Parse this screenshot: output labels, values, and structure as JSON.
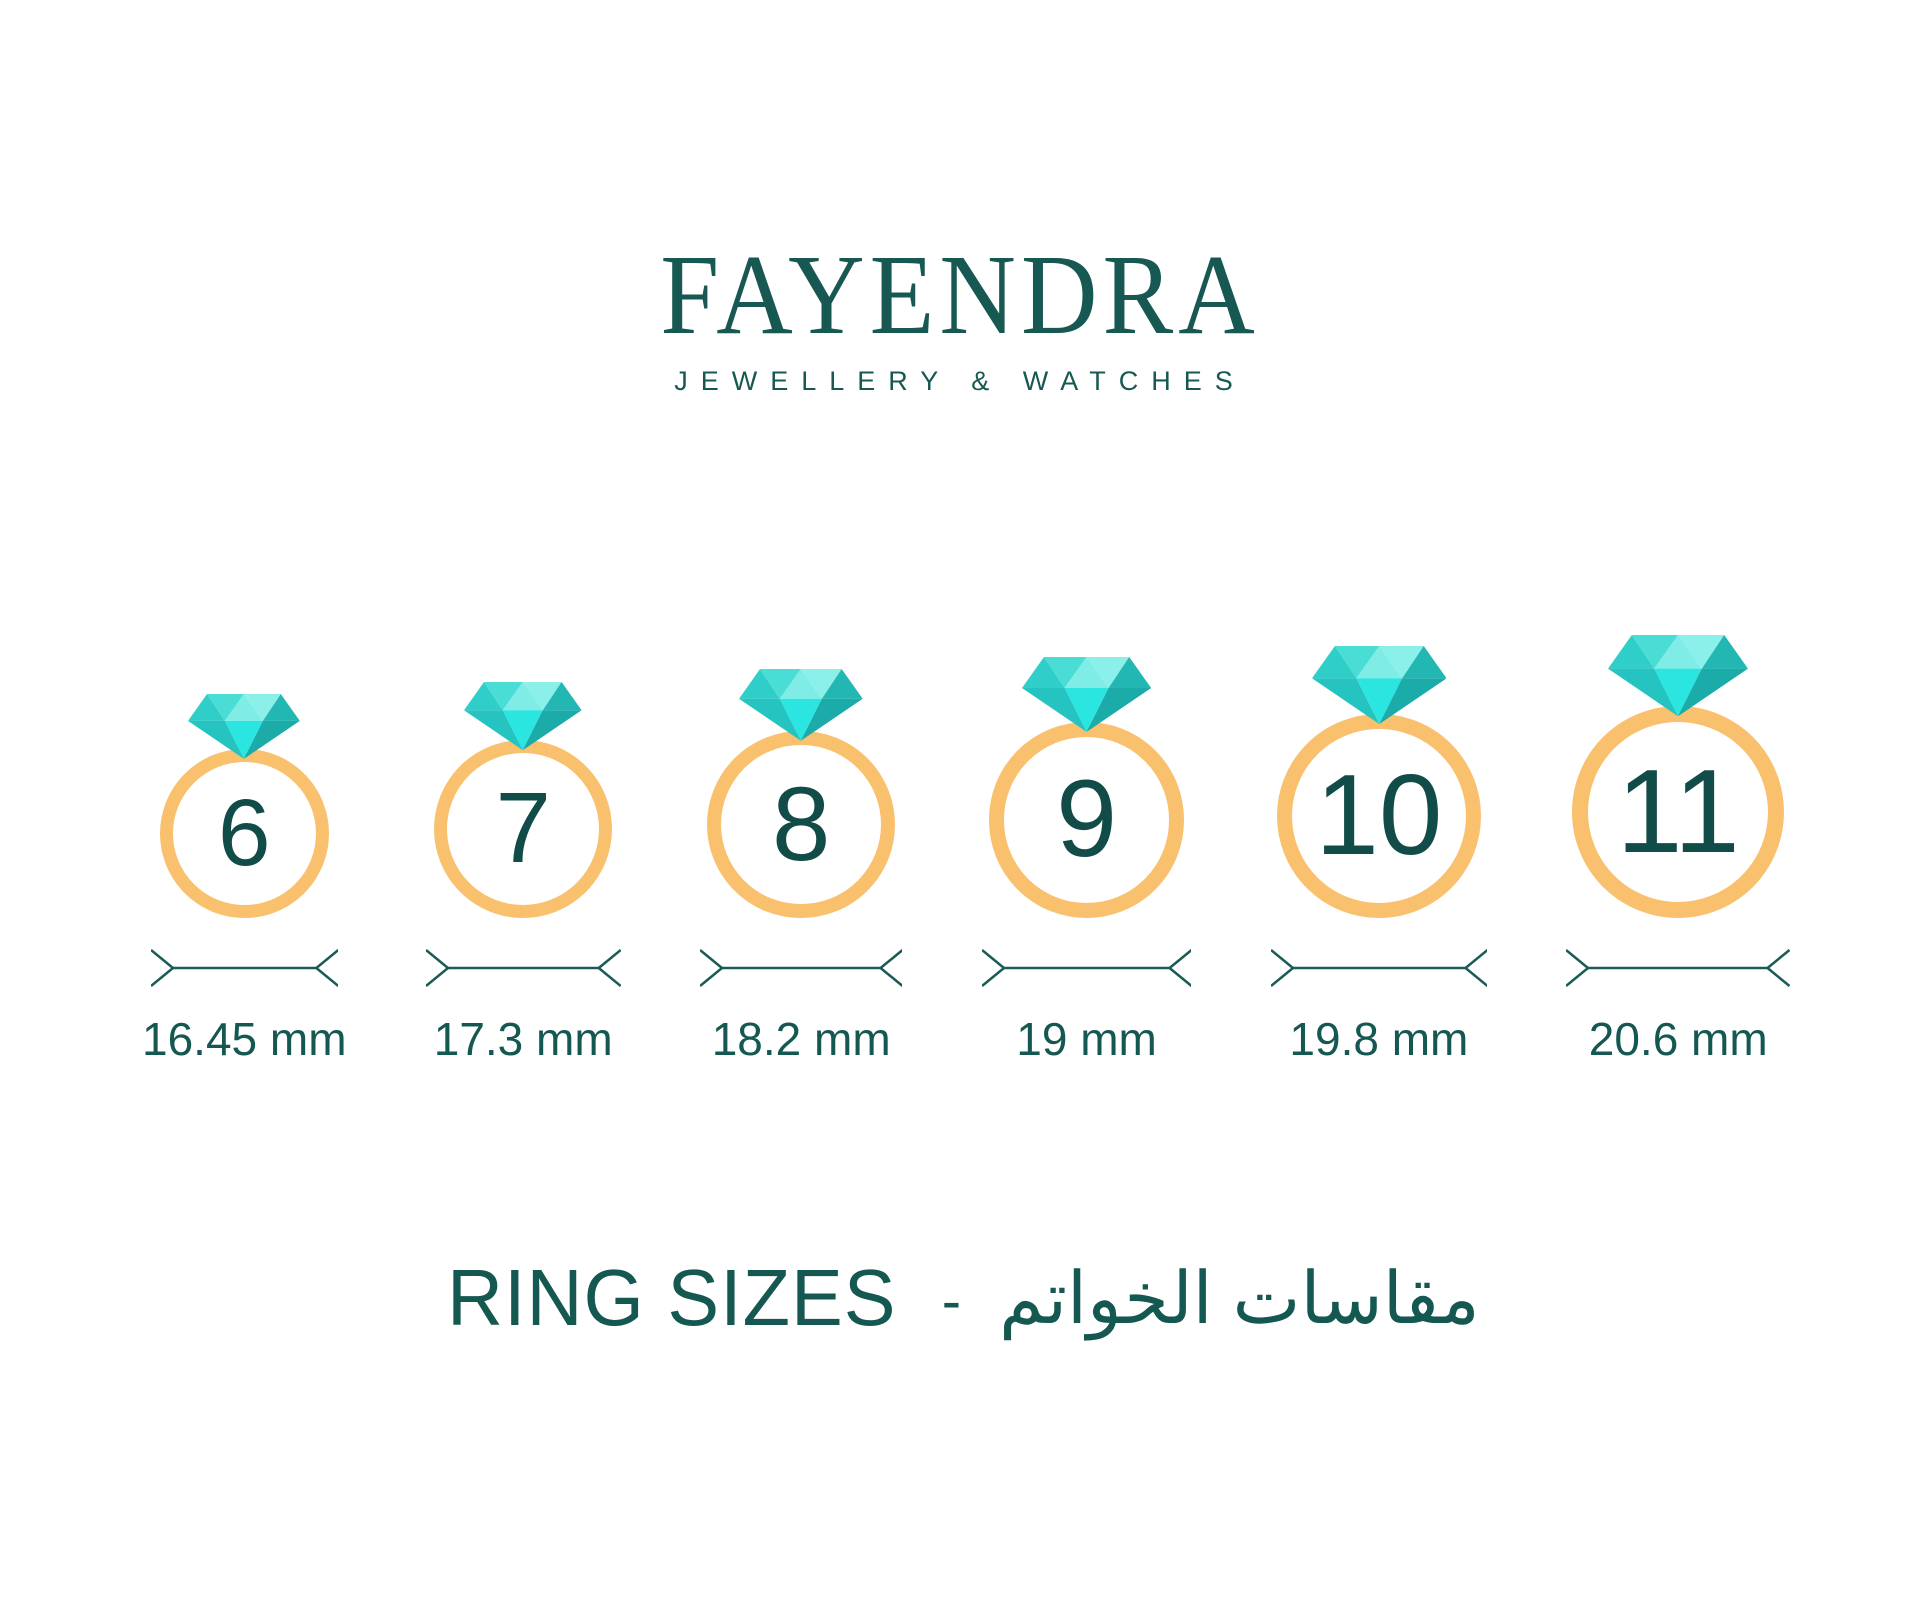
{
  "brand": {
    "name": "FAYENDRA",
    "tagline": "JEWELLERY & WATCHES",
    "color": "#175852"
  },
  "footer": {
    "title_en": "RING SIZES",
    "separator": "-",
    "title_ar": "مقاسات الخواتم"
  },
  "colors": {
    "teal_text": "#155751",
    "number_text": "#124C48",
    "band_gold": "#F9C06E",
    "arrow_line": "#1A5B55",
    "diamond_crown_left": "#2FCEC8",
    "diamond_crown_center_left": "#4ADDD6",
    "diamond_crown_center": "#7FEDE6",
    "diamond_crown_center_right": "#8BF0EA",
    "diamond_crown_right": "#22B7B3",
    "diamond_pavilion_left": "#25C4C1",
    "diamond_pavilion_center": "#2BE5E0",
    "diamond_pavilion_right": "#1BABA9"
  },
  "rings": [
    {
      "size": "6",
      "mm": 16.45,
      "label": "16.45 mm"
    },
    {
      "size": "7",
      "mm": 17.3,
      "label": "17.3 mm"
    },
    {
      "size": "8",
      "mm": 18.2,
      "label": "18.2 mm"
    },
    {
      "size": "9",
      "mm": 19.0,
      "label": "19 mm"
    },
    {
      "size": "10",
      "mm": 19.8,
      "label": "19.8 mm"
    },
    {
      "size": "11",
      "mm": 20.6,
      "label": "20.6 mm"
    }
  ]
}
